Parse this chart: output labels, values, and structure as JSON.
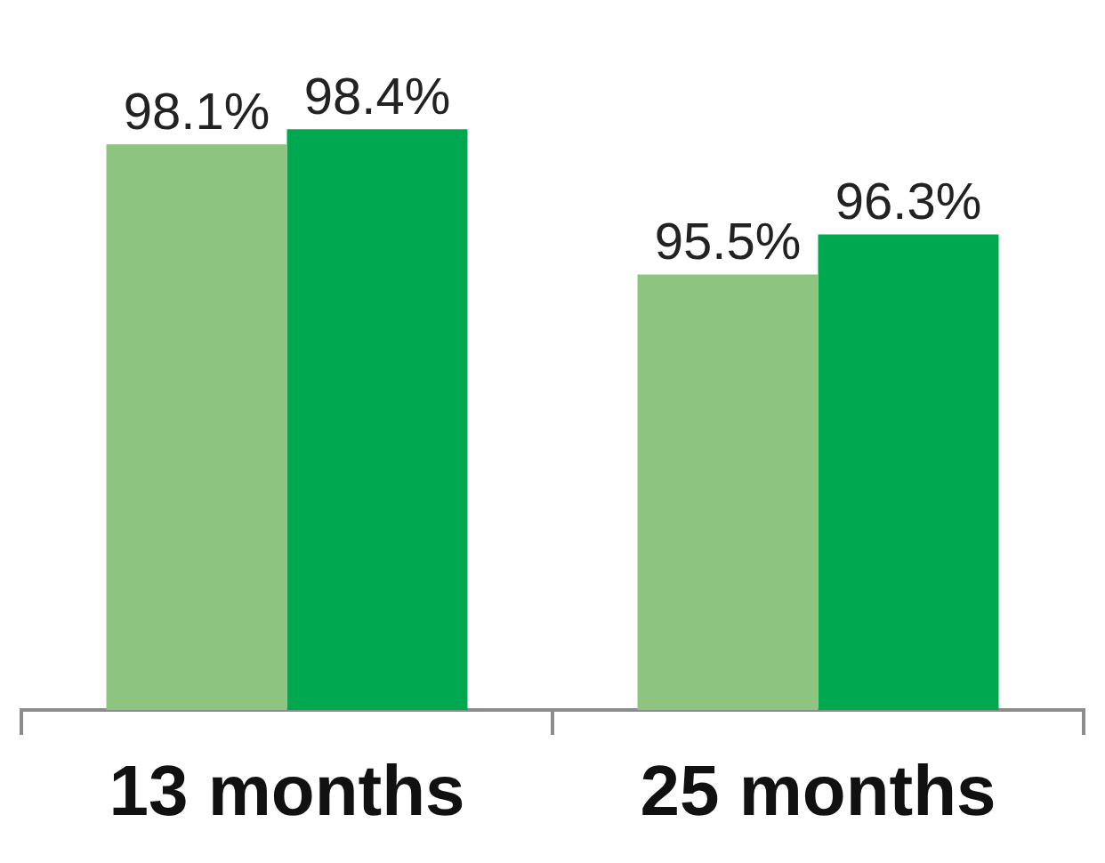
{
  "chart_data": {
    "type": "bar",
    "categories": [
      "13 months",
      "25 months"
    ],
    "series": [
      {
        "color": "#8dc480",
        "values": [
          98.1,
          95.5
        ],
        "value_labels": [
          "98.1%",
          "95.5%"
        ]
      },
      {
        "color": "#00a84f",
        "values": [
          98.4,
          96.3
        ],
        "value_labels": [
          "98.4%",
          "96.3%"
        ]
      }
    ],
    "tick_labels": "x",
    "grid": false,
    "legend": false
  }
}
